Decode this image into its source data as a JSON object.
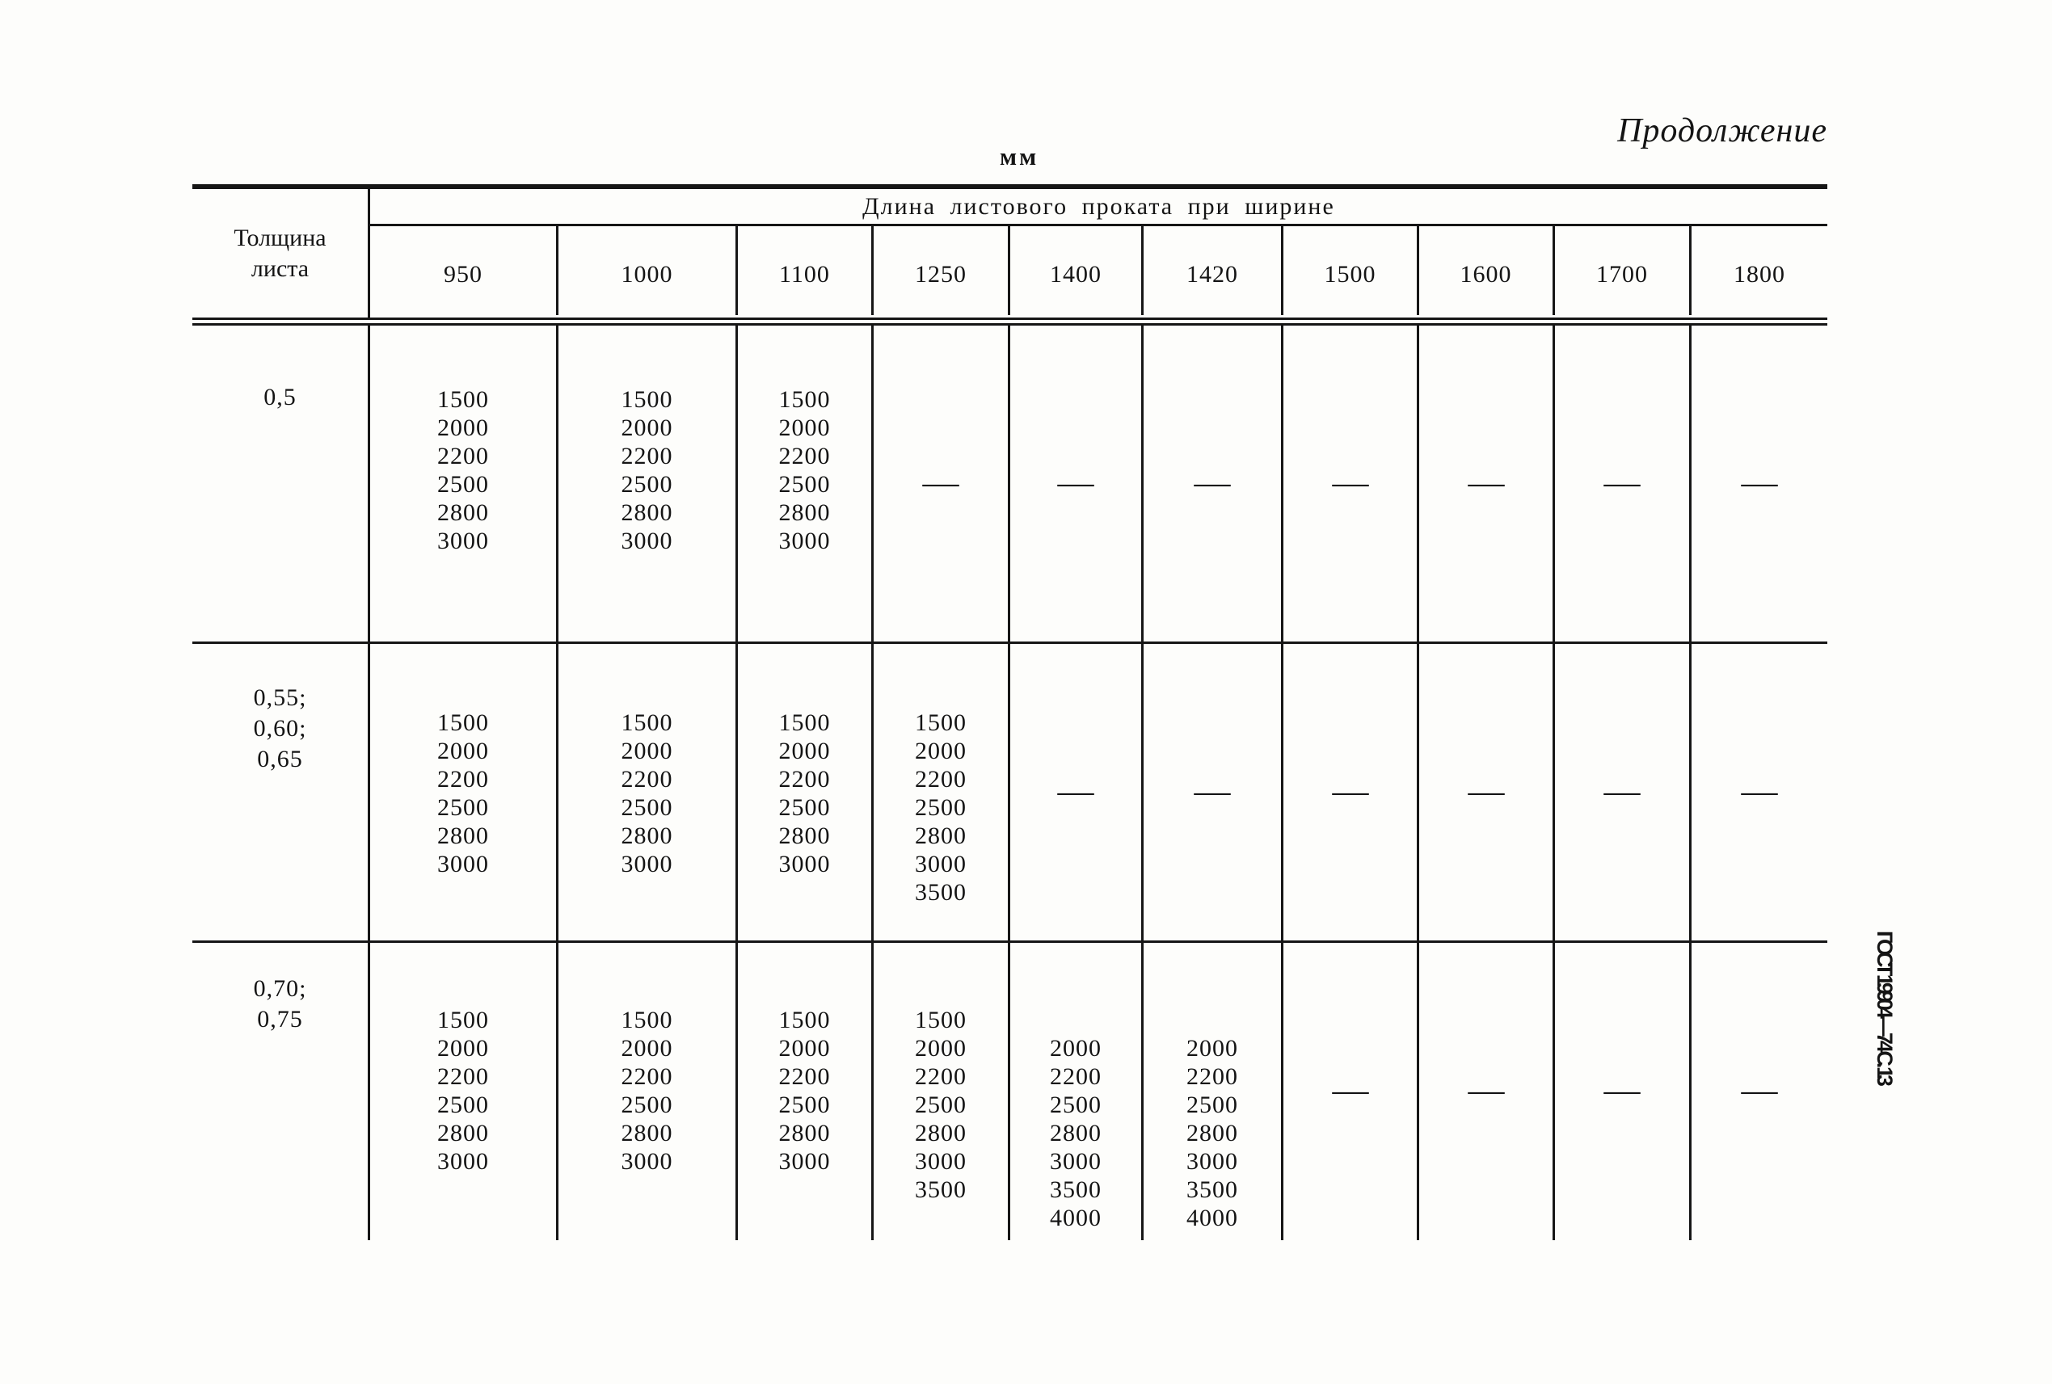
{
  "page": {
    "continuation_label": "Продолжение",
    "units_label": "мм",
    "footer_vertical": "ГОСТ 19904—74  С. 13"
  },
  "table": {
    "thickness_header": "Толщина\nлиста",
    "span_header": "Длина листового проката при ширине",
    "width_columns": [
      "950",
      "1000",
      "1100",
      "1250",
      "1400",
      "1420",
      "1500",
      "1600",
      "1700",
      "1800"
    ],
    "rows": [
      {
        "thickness": "0,5",
        "cells": [
          {
            "lines": [
              "1500",
              "2000",
              "2200",
              "2500",
              "2800",
              "3000"
            ]
          },
          {
            "lines": [
              "1500",
              "2000",
              "2200",
              "2500",
              "2800",
              "3000"
            ]
          },
          {
            "lines": [
              "1500",
              "2000",
              "2200",
              "2500",
              "2800",
              "3000"
            ]
          },
          {
            "dash": true
          },
          {
            "dash": true
          },
          {
            "dash": true
          },
          {
            "dash": true
          },
          {
            "dash": true
          },
          {
            "dash": true
          },
          {
            "dash": true
          }
        ]
      },
      {
        "thickness": "0,55;\n0,60;\n0,65",
        "cells": [
          {
            "lines": [
              "1500",
              "2000",
              "2200",
              "2500",
              "2800",
              "3000"
            ]
          },
          {
            "lines": [
              "1500",
              "2000",
              "2200",
              "2500",
              "2800",
              "3000"
            ]
          },
          {
            "lines": [
              "1500",
              "2000",
              "2200",
              "2500",
              "2800",
              "3000"
            ]
          },
          {
            "lines": [
              "1500",
              "2000",
              "2200",
              "2500",
              "2800",
              "3000",
              "3500"
            ]
          },
          {
            "dash": true
          },
          {
            "dash": true
          },
          {
            "dash": true
          },
          {
            "dash": true
          },
          {
            "dash": true
          },
          {
            "dash": true
          }
        ]
      },
      {
        "thickness": "0,70;\n0,75",
        "cells": [
          {
            "lines": [
              "1500",
              "2000",
              "2200",
              "2500",
              "2800",
              "3000"
            ]
          },
          {
            "lines": [
              "1500",
              "2000",
              "2200",
              "2500",
              "2800",
              "3000"
            ]
          },
          {
            "lines": [
              "1500",
              "2000",
              "2200",
              "2500",
              "2800",
              "3000"
            ]
          },
          {
            "lines": [
              "1500",
              "2000",
              "2200",
              "2500",
              "2800",
              "3000",
              "3500"
            ]
          },
          {
            "lines": [
              "2000",
              "2200",
              "2500",
              "2800",
              "3000",
              "3500",
              "4000"
            ],
            "offset": 1
          },
          {
            "lines": [
              "2000",
              "2200",
              "2500",
              "2800",
              "3000",
              "3500",
              "4000"
            ],
            "offset": 1
          },
          {
            "dash": true
          },
          {
            "dash": true
          },
          {
            "dash": true
          },
          {
            "dash": true
          }
        ]
      }
    ]
  }
}
